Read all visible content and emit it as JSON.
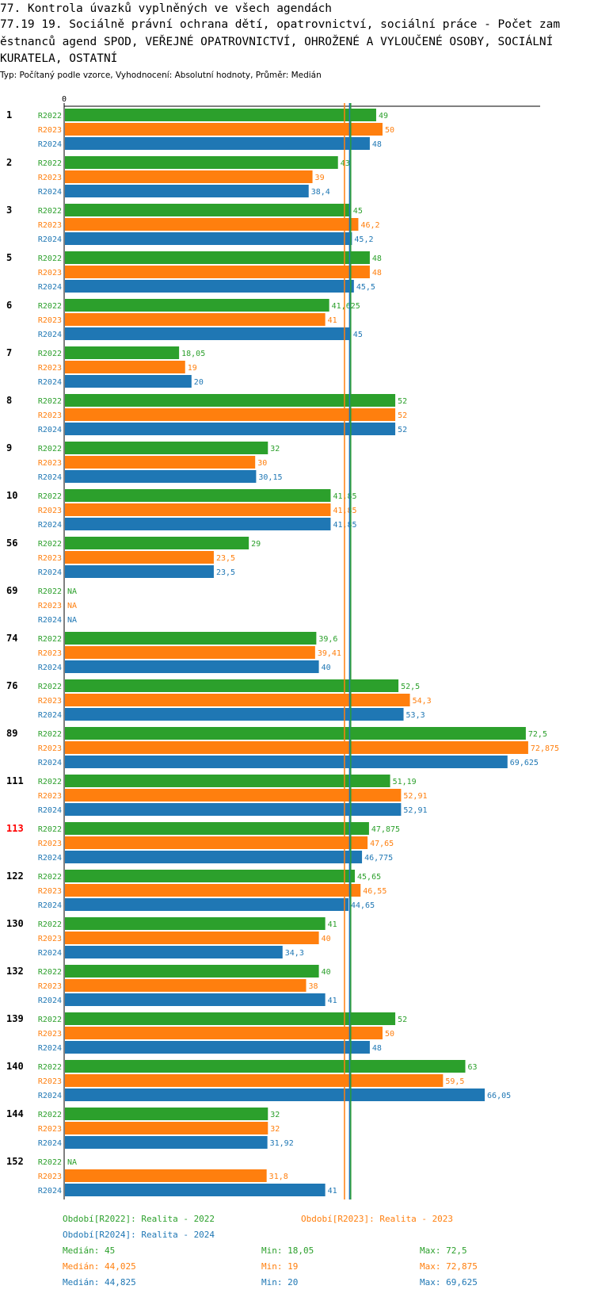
{
  "header": {
    "line1": "77. Kontrola úvazků vyplněných ve všech agendách",
    "line2": "77.19 19. Sociálně právní ochrana dětí, opatrovnictví, sociální práce - Počet zam",
    "line3": "ěstnanců agend SPOD, VEŘEJNÉ OPATROVNICTVÍ, OHROŽENÉ A VYLOUČENÉ OSOBY, SOCIÁLNÍ",
    "line4": "KURATELA, OSTATNÍ",
    "subtitle": "Typ: Počítaný podle vzorce, Vyhodnocení: Absolutní hodnoty, Průměr: Medián"
  },
  "colors": {
    "R2022": "#2ca02c",
    "R2023": "#ff7f0e",
    "R2024": "#1f77b4",
    "highlight": "#ff0000"
  },
  "chart_data": {
    "type": "bar",
    "orientation": "horizontal",
    "axis_zero_label": "0",
    "xlim": [
      0,
      72.875
    ],
    "series_names": [
      "R2022",
      "R2023",
      "R2024"
    ],
    "highlight_group": "113",
    "groups": [
      {
        "id": "1",
        "values": [
          49,
          50,
          48
        ],
        "labels": [
          "49",
          "50",
          "48"
        ]
      },
      {
        "id": "2",
        "values": [
          43,
          39,
          38.4
        ],
        "labels": [
          "43",
          "39",
          "38,4"
        ]
      },
      {
        "id": "3",
        "values": [
          45,
          46.2,
          45.2
        ],
        "labels": [
          "45",
          "46,2",
          "45,2"
        ]
      },
      {
        "id": "5",
        "values": [
          48,
          48,
          45.5
        ],
        "labels": [
          "48",
          "48",
          "45,5"
        ]
      },
      {
        "id": "6",
        "values": [
          41.625,
          41,
          45
        ],
        "labels": [
          "41,625",
          "41",
          "45"
        ]
      },
      {
        "id": "7",
        "values": [
          18.05,
          19,
          20
        ],
        "labels": [
          "18,05",
          "19",
          "20"
        ]
      },
      {
        "id": "8",
        "values": [
          52,
          52,
          52
        ],
        "labels": [
          "52",
          "52",
          "52"
        ]
      },
      {
        "id": "9",
        "values": [
          32,
          30,
          30.15
        ],
        "labels": [
          "32",
          "30",
          "30,15"
        ]
      },
      {
        "id": "10",
        "values": [
          41.85,
          41.85,
          41.85
        ],
        "labels": [
          "41,85",
          "41,85",
          "41,85"
        ]
      },
      {
        "id": "56",
        "values": [
          29,
          23.5,
          23.5
        ],
        "labels": [
          "29",
          "23,5",
          "23,5"
        ]
      },
      {
        "id": "69",
        "values": [
          null,
          null,
          null
        ],
        "labels": [
          "NA",
          "NA",
          "NA"
        ]
      },
      {
        "id": "74",
        "values": [
          39.6,
          39.41,
          40
        ],
        "labels": [
          "39,6",
          "39,41",
          "40"
        ]
      },
      {
        "id": "76",
        "values": [
          52.5,
          54.3,
          53.3
        ],
        "labels": [
          "52,5",
          "54,3",
          "53,3"
        ]
      },
      {
        "id": "89",
        "values": [
          72.5,
          72.875,
          69.625
        ],
        "labels": [
          "72,5",
          "72,875",
          "69,625"
        ]
      },
      {
        "id": "111",
        "values": [
          51.19,
          52.91,
          52.91
        ],
        "labels": [
          "51,19",
          "52,91",
          "52,91"
        ]
      },
      {
        "id": "113",
        "values": [
          47.875,
          47.65,
          46.775
        ],
        "labels": [
          "47,875",
          "47,65",
          "46,775"
        ]
      },
      {
        "id": "122",
        "values": [
          45.65,
          46.55,
          44.65
        ],
        "labels": [
          "45,65",
          "46,55",
          "44,65"
        ]
      },
      {
        "id": "130",
        "values": [
          41,
          40,
          34.3
        ],
        "labels": [
          "41",
          "40",
          "34,3"
        ]
      },
      {
        "id": "132",
        "values": [
          40,
          38,
          41
        ],
        "labels": [
          "40",
          "38",
          "41"
        ]
      },
      {
        "id": "139",
        "values": [
          52,
          50,
          48
        ],
        "labels": [
          "52",
          "50",
          "48"
        ]
      },
      {
        "id": "140",
        "values": [
          63,
          59.5,
          66.05
        ],
        "labels": [
          "63",
          "59,5",
          "66,05"
        ]
      },
      {
        "id": "144",
        "values": [
          32,
          32,
          31.92
        ],
        "labels": [
          "32",
          "32",
          "31,92"
        ]
      },
      {
        "id": "152",
        "values": [
          null,
          31.8,
          41
        ],
        "labels": [
          "NA",
          "31,8",
          "41"
        ]
      }
    ],
    "median_lines": [
      45,
      44.025,
      44.825
    ],
    "legend": [
      "Období[R2022]: Realita - 2022",
      "Období[R2023]: Realita - 2023",
      "Období[R2024]: Realita - 2024"
    ],
    "stats": [
      {
        "median": "Medián: 45",
        "min": "Min: 18,05",
        "max": "Max: 72,5"
      },
      {
        "median": "Medián: 44,025",
        "min": "Min: 19",
        "max": "Max: 72,875"
      },
      {
        "median": "Medián: 44,825",
        "min": "Min: 20",
        "max": "Max: 69,625"
      }
    ]
  }
}
